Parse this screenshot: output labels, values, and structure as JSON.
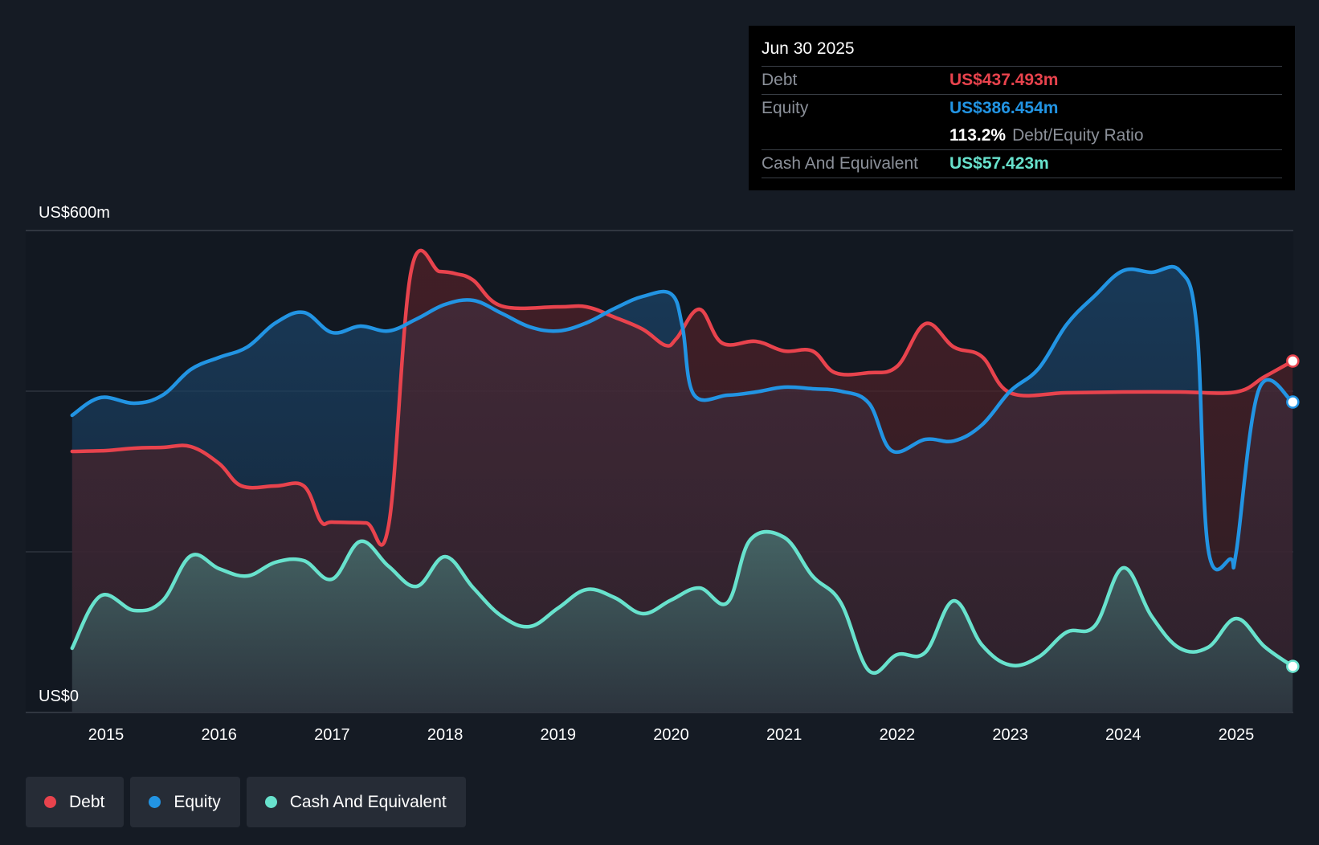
{
  "colors": {
    "debt": "#e8434d",
    "equity": "#2294e3",
    "cash": "#68e2cd",
    "background": "#151b24",
    "grid": "#3a404a"
  },
  "tooltip": {
    "date": "Jun 30 2025",
    "debt_label": "Debt",
    "debt_value": "US$437.493m",
    "equity_label": "Equity",
    "equity_value": "US$386.454m",
    "ratio_value": "113.2%",
    "ratio_label": "Debt/Equity Ratio",
    "cash_label": "Cash And Equivalent",
    "cash_value": "US$57.423m"
  },
  "legend": [
    {
      "label": "Debt",
      "color": "#e8434d"
    },
    {
      "label": "Equity",
      "color": "#2294e3"
    },
    {
      "label": "Cash And Equivalent",
      "color": "#68e2cd"
    }
  ],
  "chart_data": {
    "type": "area",
    "title": "",
    "xlabel": "",
    "ylabel": "",
    "ylim": [
      0,
      600
    ],
    "xlim": [
      2014.7,
      2025.5
    ],
    "y_tick_labels": [
      {
        "value": 600,
        "label": "US$600m"
      },
      {
        "value": 0,
        "label": "US$0"
      }
    ],
    "y_gridlines": [
      600,
      400,
      200,
      0
    ],
    "x_ticks": [
      2015,
      2016,
      2017,
      2018,
      2019,
      2020,
      2021,
      2022,
      2023,
      2024,
      2025
    ],
    "x_tick_labels": [
      "2015",
      "2016",
      "2017",
      "2018",
      "2019",
      "2020",
      "2021",
      "2022",
      "2023",
      "2024",
      "2025"
    ],
    "grid": true,
    "legend_position": "bottom-left",
    "series": [
      {
        "name": "Debt",
        "color_key": "debt",
        "points": [
          [
            2014.7,
            325
          ],
          [
            2015.0,
            326
          ],
          [
            2015.25,
            329
          ],
          [
            2015.5,
            330
          ],
          [
            2015.75,
            331
          ],
          [
            2016.0,
            310
          ],
          [
            2016.2,
            282
          ],
          [
            2016.5,
            282
          ],
          [
            2016.75,
            282
          ],
          [
            2016.9,
            238
          ],
          [
            2017.0,
            237
          ],
          [
            2017.3,
            236
          ],
          [
            2017.5,
            233
          ],
          [
            2017.7,
            550
          ],
          [
            2017.95,
            549
          ],
          [
            2018.1,
            546
          ],
          [
            2018.25,
            538
          ],
          [
            2018.5,
            506
          ],
          [
            2019.0,
            505
          ],
          [
            2019.25,
            505
          ],
          [
            2019.5,
            492
          ],
          [
            2019.75,
            477
          ],
          [
            2019.95,
            457
          ],
          [
            2020.05,
            466
          ],
          [
            2020.25,
            502
          ],
          [
            2020.45,
            460
          ],
          [
            2020.75,
            462
          ],
          [
            2021.0,
            450
          ],
          [
            2021.25,
            450
          ],
          [
            2021.45,
            423
          ],
          [
            2021.75,
            423
          ],
          [
            2022.0,
            431
          ],
          [
            2022.25,
            484
          ],
          [
            2022.5,
            455
          ],
          [
            2022.75,
            443
          ],
          [
            2023.0,
            398
          ],
          [
            2023.5,
            398
          ],
          [
            2024.0,
            399
          ],
          [
            2024.5,
            399
          ],
          [
            2025.0,
            399
          ],
          [
            2025.25,
            418
          ],
          [
            2025.5,
            437.493
          ]
        ]
      },
      {
        "name": "Equity",
        "color_key": "equity",
        "points": [
          [
            2014.7,
            370
          ],
          [
            2014.95,
            392
          ],
          [
            2015.25,
            385
          ],
          [
            2015.5,
            395
          ],
          [
            2015.75,
            427
          ],
          [
            2016.0,
            442
          ],
          [
            2016.25,
            455
          ],
          [
            2016.5,
            485
          ],
          [
            2016.75,
            498
          ],
          [
            2017.0,
            473
          ],
          [
            2017.25,
            481
          ],
          [
            2017.5,
            475
          ],
          [
            2017.75,
            490
          ],
          [
            2018.0,
            508
          ],
          [
            2018.25,
            513
          ],
          [
            2018.5,
            497
          ],
          [
            2018.75,
            480
          ],
          [
            2019.0,
            475
          ],
          [
            2019.25,
            485
          ],
          [
            2019.5,
            503
          ],
          [
            2019.75,
            518
          ],
          [
            2020.0,
            521
          ],
          [
            2020.1,
            480
          ],
          [
            2020.2,
            396
          ],
          [
            2020.5,
            395
          ],
          [
            2020.75,
            399
          ],
          [
            2021.0,
            405
          ],
          [
            2021.25,
            403
          ],
          [
            2021.5,
            400
          ],
          [
            2021.75,
            385
          ],
          [
            2021.95,
            326
          ],
          [
            2022.25,
            340
          ],
          [
            2022.5,
            338
          ],
          [
            2022.75,
            358
          ],
          [
            2023.0,
            400
          ],
          [
            2023.25,
            428
          ],
          [
            2023.5,
            483
          ],
          [
            2023.75,
            519
          ],
          [
            2024.0,
            550
          ],
          [
            2024.25,
            548
          ],
          [
            2024.5,
            550
          ],
          [
            2024.65,
            480
          ],
          [
            2024.75,
            205
          ],
          [
            2024.95,
            191
          ],
          [
            2025.0,
            200
          ],
          [
            2025.2,
            402
          ],
          [
            2025.5,
            386.454
          ]
        ]
      },
      {
        "name": "Cash And Equivalent",
        "color_key": "cash",
        "points": [
          [
            2014.7,
            80
          ],
          [
            2014.95,
            145
          ],
          [
            2015.25,
            127
          ],
          [
            2015.5,
            139
          ],
          [
            2015.75,
            195
          ],
          [
            2016.0,
            179
          ],
          [
            2016.25,
            170
          ],
          [
            2016.5,
            187
          ],
          [
            2016.75,
            189
          ],
          [
            2017.0,
            166
          ],
          [
            2017.25,
            213
          ],
          [
            2017.5,
            182
          ],
          [
            2017.75,
            157
          ],
          [
            2018.0,
            194
          ],
          [
            2018.25,
            155
          ],
          [
            2018.5,
            120
          ],
          [
            2018.75,
            107
          ],
          [
            2019.0,
            130
          ],
          [
            2019.25,
            153
          ],
          [
            2019.5,
            143
          ],
          [
            2019.75,
            123
          ],
          [
            2020.0,
            140
          ],
          [
            2020.25,
            155
          ],
          [
            2020.5,
            137
          ],
          [
            2020.7,
            215
          ],
          [
            2021.0,
            218
          ],
          [
            2021.25,
            170
          ],
          [
            2021.5,
            137
          ],
          [
            2021.75,
            52
          ],
          [
            2022.0,
            72
          ],
          [
            2022.25,
            75
          ],
          [
            2022.5,
            139
          ],
          [
            2022.75,
            84
          ],
          [
            2023.0,
            59
          ],
          [
            2023.25,
            69
          ],
          [
            2023.5,
            100
          ],
          [
            2023.75,
            108
          ],
          [
            2024.0,
            180
          ],
          [
            2024.25,
            120
          ],
          [
            2024.5,
            80
          ],
          [
            2024.75,
            81
          ],
          [
            2025.0,
            117
          ],
          [
            2025.25,
            82
          ],
          [
            2025.5,
            57.423
          ]
        ]
      }
    ]
  }
}
